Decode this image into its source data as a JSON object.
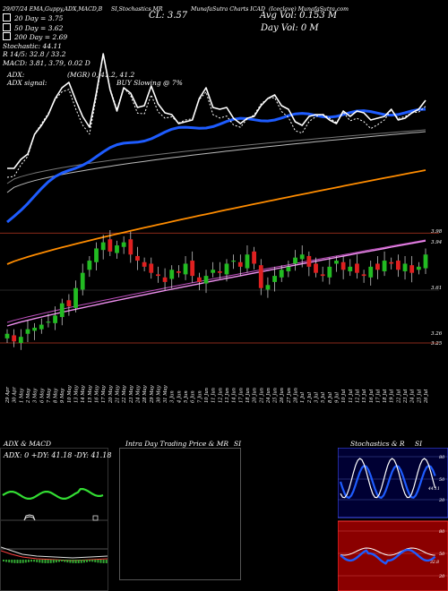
{
  "header": {
    "left": "29/07/24  EMA,Guppy,ADX,MACD,B",
    "mid": "SI,Stochastics,MR",
    "right": "MunafaSutra Charts ICAD",
    "company": "(Iceclave) MunafaSutra.com",
    "cl": "CL: 3.57",
    "avg_vol": "Avg Vol: 0.153 M",
    "day_vol": "Day Vol: 0   M"
  },
  "legend": [
    {
      "label": "20  Day = 3.75",
      "color": "#ffffff"
    },
    {
      "label": "50  Day = 3.62",
      "color": "#ffffff"
    },
    {
      "label": "200  Day = 2.69",
      "color": "#ffffff"
    }
  ],
  "stats": {
    "stochastic": "Stochastic: 44.11",
    "r": "R            14/5: 32.8  / 33.2",
    "macd": "MACD: 3.81,  3.79,  0.02  D",
    "adx": "ADX:",
    "adx_signal": "ADX  signal:",
    "mgr": "(MGR) 0,  41.2,  41.2",
    "buy": "BUY Slowing @ 7%"
  },
  "colors": {
    "bg": "#000000",
    "up": "#22bb22",
    "down": "#e02020",
    "ema_short": "#ffffff",
    "ema_mid": "#1e5cff",
    "ema_long": "#ff8c00",
    "bollinger": "#e060e0",
    "level_line": "#8a2a1a",
    "stoch_bg": "#000033",
    "si_bg": "#8b0000"
  },
  "chart_data": {
    "type": "candlestick",
    "dates": [
      "29 Apr",
      "30 Apr",
      "1 May",
      "2 May",
      "3 May",
      "6 May",
      "7 May",
      "8 May",
      "9 May",
      "10 May",
      "13 May",
      "14 May",
      "15 May",
      "16 May",
      "17 May",
      "20 May",
      "21 May",
      "22 May",
      "23 May",
      "24 May",
      "28 May",
      "29 May",
      "30 May",
      "31 May",
      "3 Jun",
      "4 Jun",
      "5 Jun",
      "6 Jun",
      "7 Jun",
      "10 Jun",
      "11 Jun",
      "12 Jun",
      "13 Jun",
      "14 Jun",
      "17 Jun",
      "18 Jun",
      "20 Jun",
      "21 Jun",
      "24 Jun",
      "25 Jun",
      "26 Jun",
      "27 Jun",
      "28 Jun",
      "1 Jul",
      "2 Jul",
      "3 Jul",
      "5 Jul",
      "8 Jul",
      "9 Jul",
      "10 Jul",
      "11 Jul",
      "12 Jul",
      "15 Jul",
      "16 Jul",
      "17 Jul",
      "18 Jul",
      "19 Jul",
      "22 Jul",
      "23 Jul",
      "24 Jul",
      "25 Jul",
      "26 Jul"
    ],
    "price_ticks": [
      "3.98",
      "3.94",
      "3.61",
      "3.26",
      "3.25"
    ],
    "price_levels": [
      3.98,
      3.26
    ],
    "ylim": [
      3.16,
      4.1
    ]
  },
  "panels": {
    "adx": {
      "title": "ADX  & MACD",
      "values": "ADX: 0   +DY: 41.18   -DY: 41.18"
    },
    "mr": {
      "title": "Intra  Day Trading Price  & MR",
      "si": "SI"
    },
    "stoch": {
      "title": "Stochastics & R",
      "si": "SI",
      "ticks": [
        "80",
        "50",
        "20"
      ],
      "value": "44.11"
    },
    "si": {
      "ticks": [
        "80",
        "50",
        "20"
      ],
      "value": "32.8"
    }
  }
}
